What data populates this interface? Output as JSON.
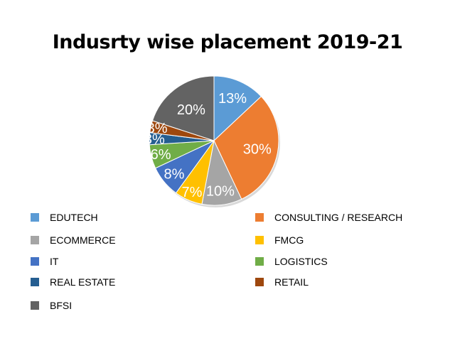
{
  "chart_data": {
    "type": "pie",
    "title": "Indusrty wise placement 2019-21",
    "slices": [
      {
        "label": "EDUTECH",
        "value": 13,
        "data_label": "13%",
        "color": "#5B9BD5"
      },
      {
        "label": "CONSULTING / RESEARCH",
        "value": 30,
        "data_label": "30%",
        "color": "#ED7D31"
      },
      {
        "label": "ECOMMERCE",
        "value": 10,
        "data_label": "10%",
        "color": "#A5A5A5"
      },
      {
        "label": "FMCG",
        "value": 7,
        "data_label": "7%",
        "color": "#FFC000"
      },
      {
        "label": "IT",
        "value": 8,
        "data_label": "8%",
        "color": "#4472C4"
      },
      {
        "label": "LOGISTICS",
        "value": 6,
        "data_label": "6%",
        "color": "#70AD47"
      },
      {
        "label": "REAL ESTATE",
        "value": 3,
        "data_label": "3%",
        "color": "#255E91"
      },
      {
        "label": "RETAIL",
        "value": 3,
        "data_label": "3%",
        "color": "#9E480E"
      },
      {
        "label": "BFSI",
        "value": 20,
        "data_label": "20%",
        "color": "#636363"
      }
    ],
    "legend_placement": "bottom"
  }
}
